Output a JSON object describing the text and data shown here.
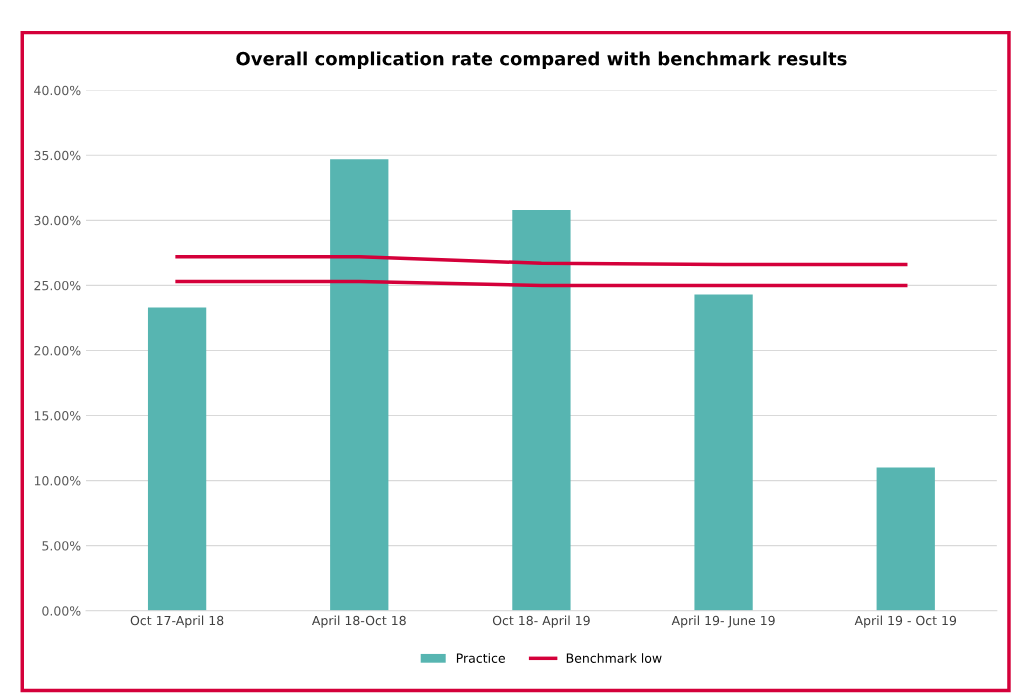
{
  "chart_data": {
    "type": "bar",
    "title": "Overall complication rate compared with benchmark results",
    "categories": [
      "Oct 17-April 18",
      "April 18-Oct 18",
      "Oct 18- April 19",
      "April 19- June 19",
      "April 19 - Oct 19"
    ],
    "series": [
      {
        "name": "Practice",
        "color": "#57b5b1",
        "values": [
          23.3,
          34.7,
          30.8,
          24.3,
          11.0
        ]
      },
      {
        "name": "Benchmark low",
        "type": "line",
        "color": "#d4003a",
        "values": [
          25.3,
          25.3,
          25.0,
          25.0,
          25.0
        ]
      },
      {
        "type": "line",
        "color": "#d4003a",
        "values": [
          27.2,
          27.2,
          26.7,
          26.6,
          26.6
        ]
      }
    ],
    "ylim": [
      0,
      40
    ],
    "yticks": [
      {
        "value": 0,
        "label": "0.00%"
      },
      {
        "value": 5,
        "label": "5.00%"
      },
      {
        "value": 10,
        "label": "10.00%"
      },
      {
        "value": 15,
        "label": "15.00%"
      },
      {
        "value": 20,
        "label": "20.00%"
      },
      {
        "value": 25,
        "label": "25.00%"
      },
      {
        "value": 30,
        "label": "30.00%"
      },
      {
        "value": 35,
        "label": "35.00%"
      },
      {
        "value": 40,
        "label": "40.00%"
      }
    ],
    "grid": "y",
    "legend": "bottom"
  }
}
